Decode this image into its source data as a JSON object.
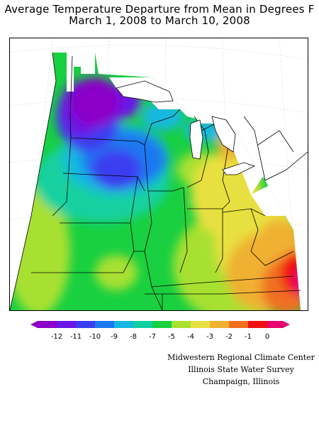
{
  "title": {
    "line1": "Average Temperature Departure from Mean in Degrees F",
    "line2": "March 1, 2008 to March 10, 2008"
  },
  "legend": {
    "labels": [
      "-12",
      "-11",
      "-10",
      "-9",
      "-8",
      "-7",
      "-5",
      "-4",
      "-3",
      "-2",
      "-1",
      "0"
    ],
    "colors": [
      "#8b00c8",
      "#6a16e6",
      "#3a3cf0",
      "#1a78f0",
      "#14b8e0",
      "#12d0a0",
      "#18d040",
      "#a8e030",
      "#e8e040",
      "#f0b030",
      "#f07020",
      "#f01010",
      "#e80070"
    ]
  },
  "credits": {
    "line1": "Midwestern Regional Climate Center",
    "line2": "Illinois State Water Survey",
    "line3": "Champaign, Illinois"
  },
  "map": {
    "region": "Midwestern United States",
    "background_color": "#ffffff",
    "border_color": "#000000"
  }
}
